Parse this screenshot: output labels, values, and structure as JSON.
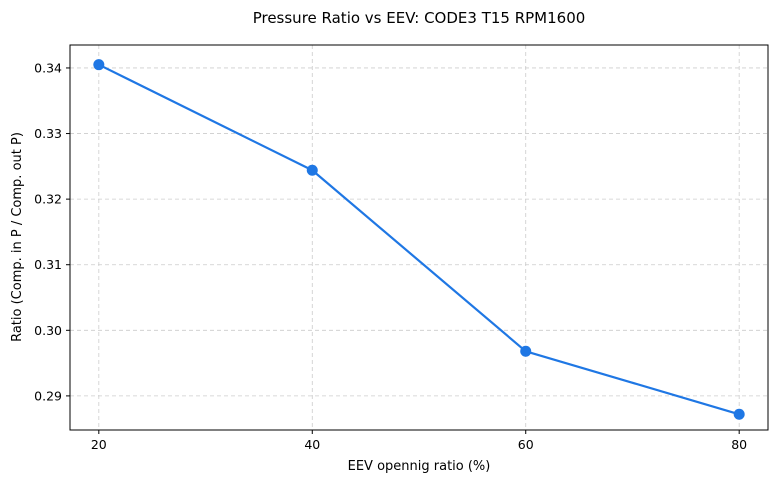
{
  "chart_data": {
    "type": "line",
    "title": "Pressure Ratio vs EEV: CODE3 T15 RPM1600",
    "xlabel": "EEV opennig ratio (%)",
    "ylabel": "Ratio (Comp. in P / Comp. out P)",
    "x": [
      20,
      40,
      60,
      80
    ],
    "series": [
      {
        "name": "Pressure Ratio",
        "values": [
          0.3405,
          0.3244,
          0.2968,
          0.2872
        ],
        "color": "#1f77e4",
        "marker": "circle"
      }
    ],
    "xlim": [
      17.3,
      82.7
    ],
    "ylim": [
      0.2848,
      0.3435
    ],
    "xticks": [
      20,
      40,
      60,
      80
    ],
    "xtick_labels": [
      "20",
      "40",
      "60",
      "80"
    ],
    "yticks": [
      0.29,
      0.3,
      0.31,
      0.32,
      0.33,
      0.34
    ],
    "ytick_labels": [
      "0.29",
      "0.30",
      "0.31",
      "0.32",
      "0.33",
      "0.34"
    ],
    "grid": true,
    "legend": "none"
  }
}
